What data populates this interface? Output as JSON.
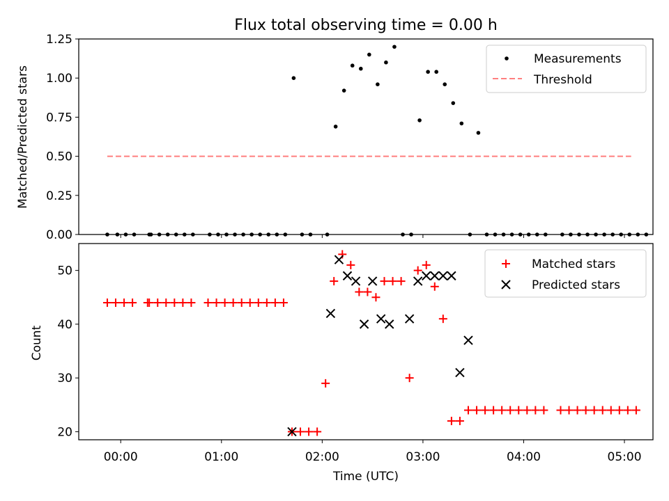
{
  "title": "Flux total observing time = 0.00 h",
  "chart_data": [
    {
      "type": "scatter",
      "panel": "top",
      "ylabel": "Matched/Predicted stars",
      "xlabel": "",
      "ylim": [
        0.0,
        1.25
      ],
      "yticks": [
        0.0,
        0.25,
        0.5,
        0.75,
        1.0,
        1.25
      ],
      "ytick_labels": [
        "0.00",
        "0.25",
        "0.50",
        "0.75",
        "1.00",
        "1.25"
      ],
      "legend": {
        "position": "top-right",
        "entries": [
          "Measurements",
          "Threshold"
        ]
      },
      "series": [
        {
          "name": "Measurements",
          "marker": "dot",
          "color": "#000000",
          "x": [
            "23:52",
            "23:58",
            "00:03",
            "00:08",
            "00:17",
            "00:18",
            "00:23",
            "00:28",
            "00:33",
            "00:38",
            "00:43",
            "00:53",
            "00:58",
            "01:03",
            "01:08",
            "01:13",
            "01:18",
            "01:23",
            "01:28",
            "01:33",
            "01:38",
            "01:43",
            "01:48",
            "01:53",
            "02:03",
            "02:08",
            "02:13",
            "02:18",
            "02:23",
            "02:28",
            "02:33",
            "02:38",
            "02:43",
            "02:48",
            "02:53",
            "02:58",
            "03:03",
            "03:08",
            "03:13",
            "03:18",
            "03:23",
            "03:28",
            "03:33",
            "03:38",
            "03:43",
            "03:48",
            "03:53",
            "03:58",
            "04:03",
            "04:08",
            "04:13",
            "04:23",
            "04:28",
            "04:33",
            "04:38",
            "04:43",
            "04:48",
            "04:53",
            "04:58",
            "05:03",
            "05:08",
            "05:13"
          ],
          "y": [
            0.0,
            0.0,
            0.0,
            0.0,
            0.0,
            0.0,
            0.0,
            0.0,
            0.0,
            0.0,
            0.0,
            0.0,
            0.0,
            0.0,
            0.0,
            0.0,
            0.0,
            0.0,
            0.0,
            0.0,
            0.0,
            1.0,
            0.0,
            0.0,
            0.0,
            0.69,
            0.92,
            1.08,
            1.06,
            1.15,
            0.96,
            1.1,
            1.2,
            0.0,
            0.0,
            0.73,
            1.04,
            1.04,
            0.96,
            0.84,
            0.71,
            0.0,
            0.65,
            0.0,
            0.0,
            0.0,
            0.0,
            0.0,
            0.0,
            0.0,
            0.0,
            0.0,
            0.0,
            0.0,
            0.0,
            0.0,
            0.0,
            0.0,
            0.0,
            0.0,
            0.0,
            0.0
          ]
        },
        {
          "name": "Threshold",
          "style": "dashed",
          "color": "#ff7f7f",
          "x": [
            "23:52",
            "05:04"
          ],
          "y": [
            0.5,
            0.5
          ]
        }
      ]
    },
    {
      "type": "scatter",
      "panel": "bottom",
      "ylabel": "Count",
      "xlabel": "Time (UTC)",
      "ylim": [
        18.5,
        55
      ],
      "yticks": [
        20,
        30,
        40,
        50
      ],
      "ytick_labels": [
        "20",
        "30",
        "40",
        "50"
      ],
      "xlim": [
        "23:35",
        "05:17"
      ],
      "xticks": [
        "00:00",
        "01:00",
        "02:00",
        "03:00",
        "04:00",
        "05:00"
      ],
      "xtick_labels": [
        "00:00",
        "01:00",
        "02:00",
        "03:00",
        "04:00",
        "05:00"
      ],
      "legend": {
        "position": "top-right",
        "entries": [
          "Matched stars",
          "Predicted stars"
        ]
      },
      "series": [
        {
          "name": "Matched stars",
          "marker": "plus",
          "color": "#ff0000",
          "x": [
            "23:52",
            "23:57",
            "00:02",
            "00:07",
            "00:16",
            "00:17",
            "00:22",
            "00:27",
            "00:32",
            "00:37",
            "00:42",
            "00:52",
            "00:57",
            "01:02",
            "01:07",
            "01:12",
            "01:17",
            "01:22",
            "01:27",
            "01:32",
            "01:37",
            "01:42",
            "01:47",
            "01:52",
            "01:57",
            "02:02",
            "02:07",
            "02:12",
            "02:17",
            "02:22",
            "02:27",
            "02:32",
            "02:37",
            "02:42",
            "02:47",
            "02:52",
            "02:57",
            "03:02",
            "03:07",
            "03:12",
            "03:17",
            "03:22",
            "03:27",
            "03:32",
            "03:37",
            "03:42",
            "03:47",
            "03:52",
            "03:57",
            "04:02",
            "04:07",
            "04:12",
            "04:22",
            "04:27",
            "04:32",
            "04:37",
            "04:42",
            "04:47",
            "04:52",
            "04:57",
            "05:02",
            "05:07"
          ],
          "y": [
            44,
            44,
            44,
            44,
            44,
            44,
            44,
            44,
            44,
            44,
            44,
            44,
            44,
            44,
            44,
            44,
            44,
            44,
            44,
            44,
            44,
            20,
            20,
            20,
            20,
            29,
            48,
            53,
            51,
            46,
            46,
            45,
            48,
            48,
            48,
            30,
            50,
            51,
            47,
            41,
            22,
            22,
            24,
            24,
            24,
            24,
            24,
            24,
            24,
            24,
            24,
            24,
            24,
            24,
            24,
            24,
            24,
            24,
            24,
            24,
            24,
            24
          ]
        },
        {
          "name": "Predicted stars",
          "marker": "x",
          "color": "#000000",
          "x": [
            "01:42",
            "02:05",
            "02:10",
            "02:15",
            "02:20",
            "02:25",
            "02:30",
            "02:35",
            "02:40",
            "02:52",
            "02:57",
            "03:02",
            "03:07",
            "03:12",
            "03:17",
            "03:22",
            "03:27"
          ],
          "y": [
            20,
            42,
            52,
            49,
            48,
            40,
            48,
            41,
            40,
            41,
            48,
            49,
            49,
            49,
            49,
            31,
            37
          ]
        }
      ]
    }
  ]
}
